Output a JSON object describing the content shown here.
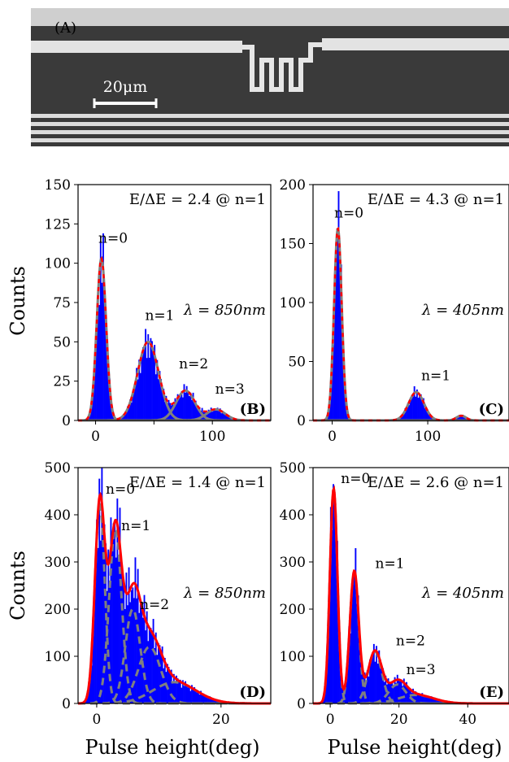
{
  "photo": {
    "label": "(A)",
    "scale_label": "20μm"
  },
  "shared": {
    "ylabel": "Counts",
    "xlabel": "Pulse height(deg)"
  },
  "chart_data": [
    {
      "panel": "(B)",
      "type": "area",
      "xlim": [
        -15,
        150
      ],
      "ylim": [
        0,
        150
      ],
      "xticks": [
        0,
        50,
        100
      ],
      "xtick_labels": [
        "0",
        "",
        "100"
      ],
      "yticks": [
        0,
        25,
        50,
        75,
        100,
        125,
        150
      ],
      "ytick_labels": [
        "0",
        "25",
        "50",
        "75",
        "100",
        "125",
        "150"
      ],
      "annotation_ratio": "E/ΔE = 2.4 @ n=1",
      "annotation_wavelength": "λ = 850nm",
      "peaks": [
        {
          "label": "n=0",
          "x": 5,
          "y": 103,
          "sigma": 4
        },
        {
          "label": "n=1",
          "x": 45,
          "y": 50,
          "sigma": 9
        },
        {
          "label": "n=2",
          "x": 77,
          "y": 19,
          "sigma": 8
        },
        {
          "label": "n=3",
          "x": 103,
          "y": 7,
          "sigma": 8
        }
      ],
      "peak_label_positions": [
        [
          8,
          113
        ],
        [
          48,
          64
        ],
        [
          77,
          33
        ],
        [
          108,
          17
        ]
      ],
      "series": [
        {
          "name": "histogram",
          "color": "#0000ff"
        },
        {
          "name": "fit total",
          "color": "#ff0000",
          "dashed": true
        },
        {
          "name": "fit components",
          "color": "#808080"
        }
      ]
    },
    {
      "panel": "(C)",
      "type": "area",
      "xlim": [
        -20,
        185
      ],
      "ylim": [
        0,
        200
      ],
      "xticks": [
        0,
        100
      ],
      "xtick_labels": [
        "0",
        "100"
      ],
      "yticks": [
        0,
        50,
        100,
        150,
        200
      ],
      "ytick_labels": [
        "0",
        "50",
        "100",
        "150",
        "200"
      ],
      "annotation_ratio": "E/ΔE = 4.3 @ n=1",
      "annotation_wavelength": "λ = 405nm",
      "peaks": [
        {
          "label": "n=0",
          "x": 6,
          "y": 163,
          "sigma": 4
        },
        {
          "label": "n=1",
          "x": 88,
          "y": 24,
          "sigma": 8
        },
        {
          "label": "",
          "x": 135,
          "y": 4,
          "sigma": 5
        }
      ],
      "peak_label_positions": [
        [
          9,
          172
        ],
        [
          100,
          34
        ],
        null
      ],
      "series": [
        {
          "name": "histogram",
          "color": "#0000ff"
        },
        {
          "name": "fit total",
          "color": "#ff0000",
          "dashed": true
        },
        {
          "name": "fit components",
          "color": "#808080"
        }
      ]
    },
    {
      "panel": "(D)",
      "type": "area",
      "xlim": [
        -3,
        28
      ],
      "ylim": [
        0,
        500
      ],
      "xticks": [
        0,
        20
      ],
      "xtick_labels": [
        "0",
        "20"
      ],
      "yticks": [
        0,
        100,
        200,
        300,
        400,
        500
      ],
      "ytick_labels": [
        "0",
        "100",
        "200",
        "300",
        "400",
        "500"
      ],
      "annotation_ratio": "E/ΔE = 1.4 @ n=1",
      "annotation_wavelength": "λ = 850nm",
      "peaks": [
        {
          "label": "n=0",
          "x": 0.5,
          "y": 425,
          "sigma": 0.8
        },
        {
          "label": "n=1",
          "x": 3,
          "y": 370,
          "sigma": 1.0
        },
        {
          "label": "n=2",
          "x": 5.8,
          "y": 200,
          "sigma": 1.2
        },
        {
          "label": "",
          "x": 8.5,
          "y": 120,
          "sigma": 1.8
        },
        {
          "label": "",
          "x": 12.5,
          "y": 45,
          "sigma": 3.5
        }
      ],
      "peak_label_positions": [
        [
          2.5,
          445
        ],
        [
          5,
          367
        ],
        [
          8,
          200
        ],
        null,
        null
      ],
      "series": [
        {
          "name": "histogram",
          "color": "#0000ff"
        },
        {
          "name": "fit total",
          "color": "#ff0000"
        },
        {
          "name": "fit components",
          "color": "#808080",
          "dashed": true
        }
      ]
    },
    {
      "panel": "(E)",
      "type": "area",
      "xlim": [
        -5,
        52
      ],
      "ylim": [
        0,
        500
      ],
      "xticks": [
        0,
        20,
        40
      ],
      "xtick_labels": [
        "0",
        "20",
        "40"
      ],
      "yticks": [
        0,
        100,
        200,
        300,
        400,
        500
      ],
      "ytick_labels": [
        "0",
        "100",
        "200",
        "300",
        "400",
        "500"
      ],
      "annotation_ratio": "E/ΔE = 2.6 @ n=1",
      "annotation_wavelength": "λ = 405nm",
      "peaks": [
        {
          "label": "n=0",
          "x": 1,
          "y": 455,
          "sigma": 1.1
        },
        {
          "label": "n=1",
          "x": 7,
          "y": 280,
          "sigma": 1.3
        },
        {
          "label": "n=2",
          "x": 13,
          "y": 110,
          "sigma": 2.0
        },
        {
          "label": "n=3",
          "x": 19.5,
          "y": 40,
          "sigma": 2.5
        },
        {
          "label": "",
          "x": 25,
          "y": 18,
          "sigma": 5
        }
      ],
      "peak_label_positions": [
        [
          5,
          467
        ],
        [
          15,
          287
        ],
        [
          21,
          123
        ],
        [
          24,
          62
        ],
        null
      ],
      "series": [
        {
          "name": "histogram",
          "color": "#0000ff"
        },
        {
          "name": "fit total",
          "color": "#ff0000"
        },
        {
          "name": "fit components",
          "color": "#808080",
          "dashed": true
        }
      ]
    }
  ]
}
